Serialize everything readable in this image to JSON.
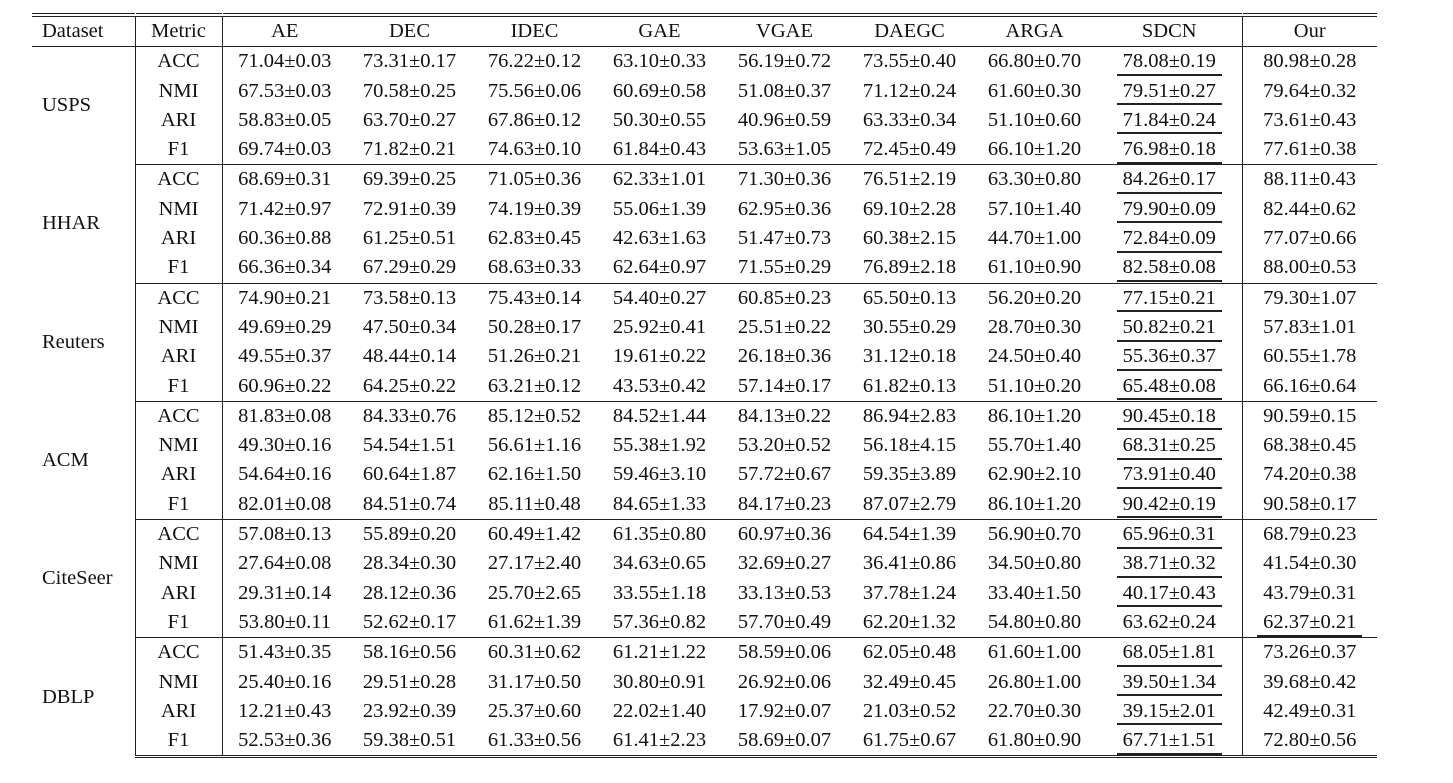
{
  "headers": [
    "Dataset",
    "Metric",
    "AE",
    "DEC",
    "IDEC",
    "GAE",
    "VGAE",
    "DAEGC",
    "ARGA",
    "SDCN",
    "Our"
  ],
  "groups": [
    {
      "dataset": "USPS",
      "rows": [
        {
          "metric": "ACC",
          "values": [
            "71.04±0.03",
            "73.31±0.17",
            "76.22±0.12",
            "63.10±0.33",
            "56.19±0.72",
            "73.55±0.40",
            "66.80±0.70",
            "78.08±0.19",
            "80.98±0.28"
          ],
          "best": 8,
          "second": 7
        },
        {
          "metric": "NMI",
          "values": [
            "67.53±0.03",
            "70.58±0.25",
            "75.56±0.06",
            "60.69±0.58",
            "51.08±0.37",
            "71.12±0.24",
            "61.60±0.30",
            "79.51±0.27",
            "79.64±0.32"
          ],
          "best": 8,
          "second": 7
        },
        {
          "metric": "ARI",
          "values": [
            "58.83±0.05",
            "63.70±0.27",
            "67.86±0.12",
            "50.30±0.55",
            "40.96±0.59",
            "63.33±0.34",
            "51.10±0.60",
            "71.84±0.24",
            "73.61±0.43"
          ],
          "best": 8,
          "second": 7
        },
        {
          "metric": "F1",
          "values": [
            "69.74±0.03",
            "71.82±0.21",
            "74.63±0.10",
            "61.84±0.43",
            "53.63±1.05",
            "72.45±0.49",
            "66.10±1.20",
            "76.98±0.18",
            "77.61±0.38"
          ],
          "best": 8,
          "second": 7
        }
      ]
    },
    {
      "dataset": "HHAR",
      "rows": [
        {
          "metric": "ACC",
          "values": [
            "68.69±0.31",
            "69.39±0.25",
            "71.05±0.36",
            "62.33±1.01",
            "71.30±0.36",
            "76.51±2.19",
            "63.30±0.80",
            "84.26±0.17",
            "88.11±0.43"
          ],
          "best": 8,
          "second": 7
        },
        {
          "metric": "NMI",
          "values": [
            "71.42±0.97",
            "72.91±0.39",
            "74.19±0.39",
            "55.06±1.39",
            "62.95±0.36",
            "69.10±2.28",
            "57.10±1.40",
            "79.90±0.09",
            "82.44±0.62"
          ],
          "best": 8,
          "second": 7
        },
        {
          "metric": "ARI",
          "values": [
            "60.36±0.88",
            "61.25±0.51",
            "62.83±0.45",
            "42.63±1.63",
            "51.47±0.73",
            "60.38±2.15",
            "44.70±1.00",
            "72.84±0.09",
            "77.07±0.66"
          ],
          "best": 8,
          "second": 7
        },
        {
          "metric": "F1",
          "values": [
            "66.36±0.34",
            "67.29±0.29",
            "68.63±0.33",
            "62.64±0.97",
            "71.55±0.29",
            "76.89±2.18",
            "61.10±0.90",
            "82.58±0.08",
            "88.00±0.53"
          ],
          "best": 8,
          "second": 7
        }
      ]
    },
    {
      "dataset": "Reuters",
      "rows": [
        {
          "metric": "ACC",
          "values": [
            "74.90±0.21",
            "73.58±0.13",
            "75.43±0.14",
            "54.40±0.27",
            "60.85±0.23",
            "65.50±0.13",
            "56.20±0.20",
            "77.15±0.21",
            "79.30±1.07"
          ],
          "best": 8,
          "second": 7
        },
        {
          "metric": "NMI",
          "values": [
            "49.69±0.29",
            "47.50±0.34",
            "50.28±0.17",
            "25.92±0.41",
            "25.51±0.22",
            "30.55±0.29",
            "28.70±0.30",
            "50.82±0.21",
            "57.83±1.01"
          ],
          "best": 8,
          "second": 7
        },
        {
          "metric": "ARI",
          "values": [
            "49.55±0.37",
            "48.44±0.14",
            "51.26±0.21",
            "19.61±0.22",
            "26.18±0.36",
            "31.12±0.18",
            "24.50±0.40",
            "55.36±0.37",
            "60.55±1.78"
          ],
          "best": 8,
          "second": 7
        },
        {
          "metric": "F1",
          "values": [
            "60.96±0.22",
            "64.25±0.22",
            "63.21±0.12",
            "43.53±0.42",
            "57.14±0.17",
            "61.82±0.13",
            "51.10±0.20",
            "65.48±0.08",
            "66.16±0.64"
          ],
          "best": 8,
          "second": 7
        }
      ]
    },
    {
      "dataset": "ACM",
      "rows": [
        {
          "metric": "ACC",
          "values": [
            "81.83±0.08",
            "84.33±0.76",
            "85.12±0.52",
            "84.52±1.44",
            "84.13±0.22",
            "86.94±2.83",
            "86.10±1.20",
            "90.45±0.18",
            "90.59±0.15"
          ],
          "best": 8,
          "second": 7
        },
        {
          "metric": "NMI",
          "values": [
            "49.30±0.16",
            "54.54±1.51",
            "56.61±1.16",
            "55.38±1.92",
            "53.20±0.52",
            "56.18±4.15",
            "55.70±1.40",
            "68.31±0.25",
            "68.38±0.45"
          ],
          "best": 8,
          "second": 7
        },
        {
          "metric": "ARI",
          "values": [
            "54.64±0.16",
            "60.64±1.87",
            "62.16±1.50",
            "59.46±3.10",
            "57.72±0.67",
            "59.35±3.89",
            "62.90±2.10",
            "73.91±0.40",
            "74.20±0.38"
          ],
          "best": 8,
          "second": 7
        },
        {
          "metric": "F1",
          "values": [
            "82.01±0.08",
            "84.51±0.74",
            "85.11±0.48",
            "84.65±1.33",
            "84.17±0.23",
            "87.07±2.79",
            "86.10±1.20",
            "90.42±0.19",
            "90.58±0.17"
          ],
          "best": 8,
          "second": 7
        }
      ]
    },
    {
      "dataset": "CiteSeer",
      "rows": [
        {
          "metric": "ACC",
          "values": [
            "57.08±0.13",
            "55.89±0.20",
            "60.49±1.42",
            "61.35±0.80",
            "60.97±0.36",
            "64.54±1.39",
            "56.90±0.70",
            "65.96±0.31",
            "68.79±0.23"
          ],
          "best": 8,
          "second": 7
        },
        {
          "metric": "NMI",
          "values": [
            "27.64±0.08",
            "28.34±0.30",
            "27.17±2.40",
            "34.63±0.65",
            "32.69±0.27",
            "36.41±0.86",
            "34.50±0.80",
            "38.71±0.32",
            "41.54±0.30"
          ],
          "best": 8,
          "second": 7
        },
        {
          "metric": "ARI",
          "values": [
            "29.31±0.14",
            "28.12±0.36",
            "25.70±2.65",
            "33.55±1.18",
            "33.13±0.53",
            "37.78±1.24",
            "33.40±1.50",
            "40.17±0.43",
            "43.79±0.31"
          ],
          "best": 8,
          "second": 7
        },
        {
          "metric": "F1",
          "values": [
            "53.80±0.11",
            "52.62±0.17",
            "61.62±1.39",
            "57.36±0.82",
            "57.70±0.49",
            "62.20±1.32",
            "54.80±0.80",
            "63.62±0.24",
            "62.37±0.21"
          ],
          "best": 7,
          "second": 8
        }
      ]
    },
    {
      "dataset": "DBLP",
      "rows": [
        {
          "metric": "ACC",
          "values": [
            "51.43±0.35",
            "58.16±0.56",
            "60.31±0.62",
            "61.21±1.22",
            "58.59±0.06",
            "62.05±0.48",
            "61.60±1.00",
            "68.05±1.81",
            "73.26±0.37"
          ],
          "best": 8,
          "second": 7
        },
        {
          "metric": "NMI",
          "values": [
            "25.40±0.16",
            "29.51±0.28",
            "31.17±0.50",
            "30.80±0.91",
            "26.92±0.06",
            "32.49±0.45",
            "26.80±1.00",
            "39.50±1.34",
            "39.68±0.42"
          ],
          "best": 8,
          "second": 7
        },
        {
          "metric": "ARI",
          "values": [
            "12.21±0.43",
            "23.92±0.39",
            "25.37±0.60",
            "22.02±1.40",
            "17.92±0.07",
            "21.03±0.52",
            "22.70±0.30",
            "39.15±2.01",
            "42.49±0.31"
          ],
          "best": 8,
          "second": 7
        },
        {
          "metric": "F1",
          "values": [
            "52.53±0.36",
            "59.38±0.51",
            "61.33±0.56",
            "61.41±2.23",
            "58.69±0.07",
            "61.75±0.67",
            "61.80±0.90",
            "67.71±1.51",
            "72.80±0.56"
          ],
          "best": 8,
          "second": 7
        }
      ]
    }
  ]
}
